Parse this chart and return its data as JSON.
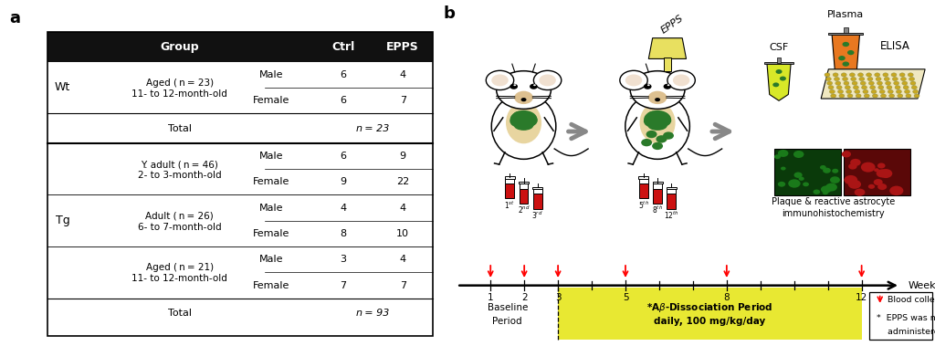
{
  "panel_a": {
    "header_bg": "#1a1a1a",
    "header_fg": "#ffffff",
    "wt_label": "Wt",
    "tg_label": "Tg",
    "wt_group_label1": "Aged (n = 23)",
    "wt_group_label2": "11- to 12-month-old",
    "wt_rows": [
      [
        "Male",
        "6",
        "4"
      ],
      [
        "Female",
        "6",
        "7"
      ]
    ],
    "wt_total": "n = 23",
    "tg_group1_label1": "Y. adult (n = 46)",
    "tg_group1_label2": "2- to 3-month-old",
    "tg_group1_rows": [
      [
        "Male",
        "6",
        "9"
      ],
      [
        "Female",
        "9",
        "22"
      ]
    ],
    "tg_group2_label1": "Adult (n = 26)",
    "tg_group2_label2": "6- to 7-month-old",
    "tg_group2_rows": [
      [
        "Male",
        "4",
        "4"
      ],
      [
        "Female",
        "8",
        "10"
      ]
    ],
    "tg_group3_label1": "Aged (n = 21)",
    "tg_group3_label2": "11- to 12-month-old",
    "tg_group3_rows": [
      [
        "Male",
        "3",
        "4"
      ],
      [
        "Female",
        "7",
        "7"
      ]
    ],
    "tg_total": "n = 93"
  }
}
